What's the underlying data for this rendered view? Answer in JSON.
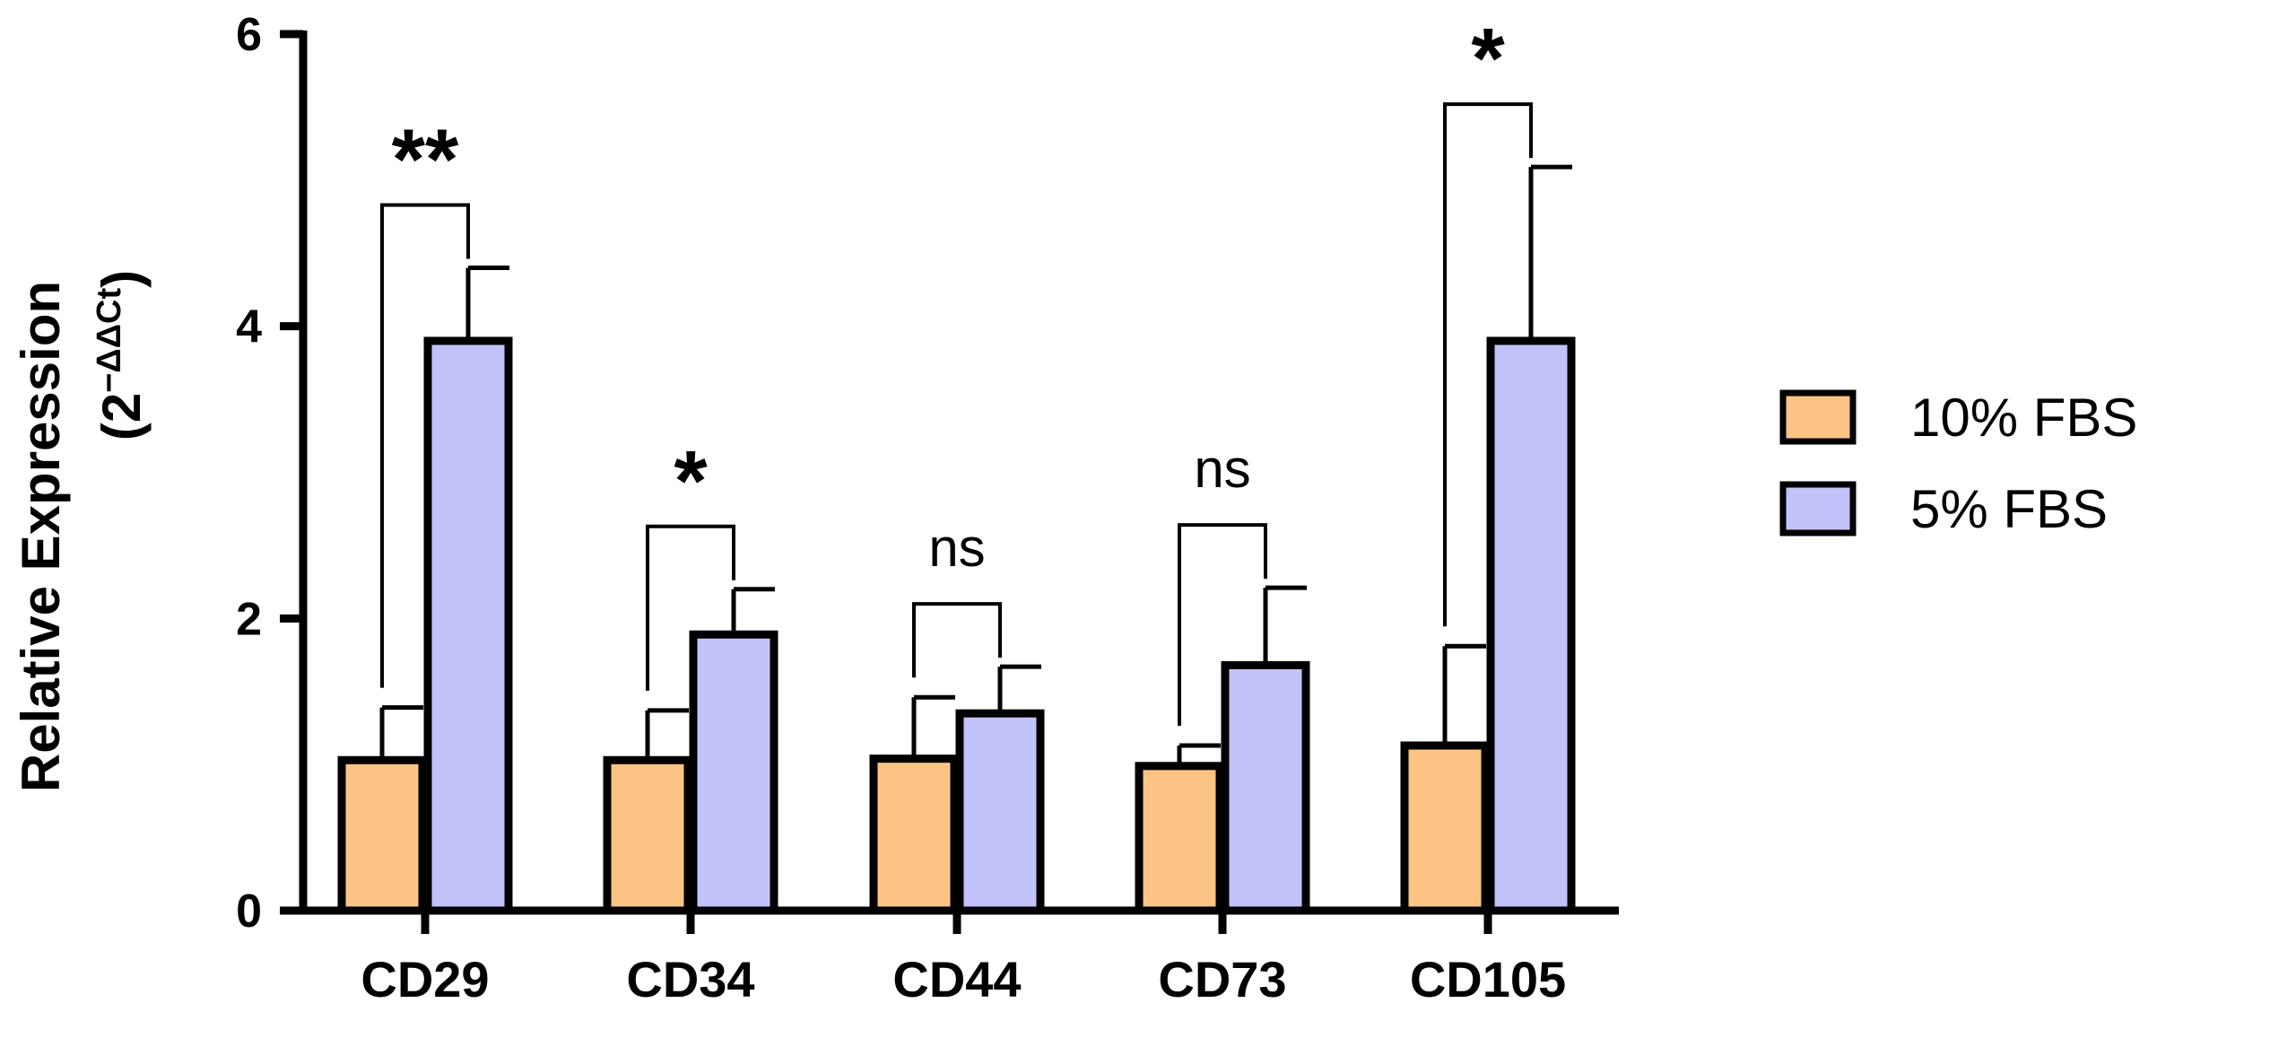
{
  "chart_data": {
    "type": "bar",
    "categories": [
      "CD29",
      "CD34",
      "CD44",
      "CD73",
      "CD105"
    ],
    "series": [
      {
        "name": "10% FBS",
        "color": "#FCC484",
        "values": [
          1.03,
          1.03,
          1.04,
          0.99,
          1.13
        ],
        "errors": [
          0.36,
          0.34,
          0.42,
          0.14,
          0.68
        ]
      },
      {
        "name": "5% FBS",
        "color": "#C3C3FB",
        "values": [
          3.9,
          1.89,
          1.35,
          1.68,
          3.9
        ],
        "errors": [
          0.5,
          0.31,
          0.32,
          0.53,
          1.19
        ]
      }
    ],
    "significance": [
      "**",
      "*",
      "ns",
      "ns",
      "*"
    ],
    "ylim": [
      0,
      6
    ],
    "yticks": [
      "0",
      "2",
      "4",
      "6"
    ],
    "ylabel": "Relative Expression",
    "ylabel_unit_open": "(2",
    "ylabel_unit_sup": "−ΔΔCt",
    "ylabel_unit_close": ")",
    "xlabel": "",
    "title": "",
    "legend_position": "right"
  }
}
